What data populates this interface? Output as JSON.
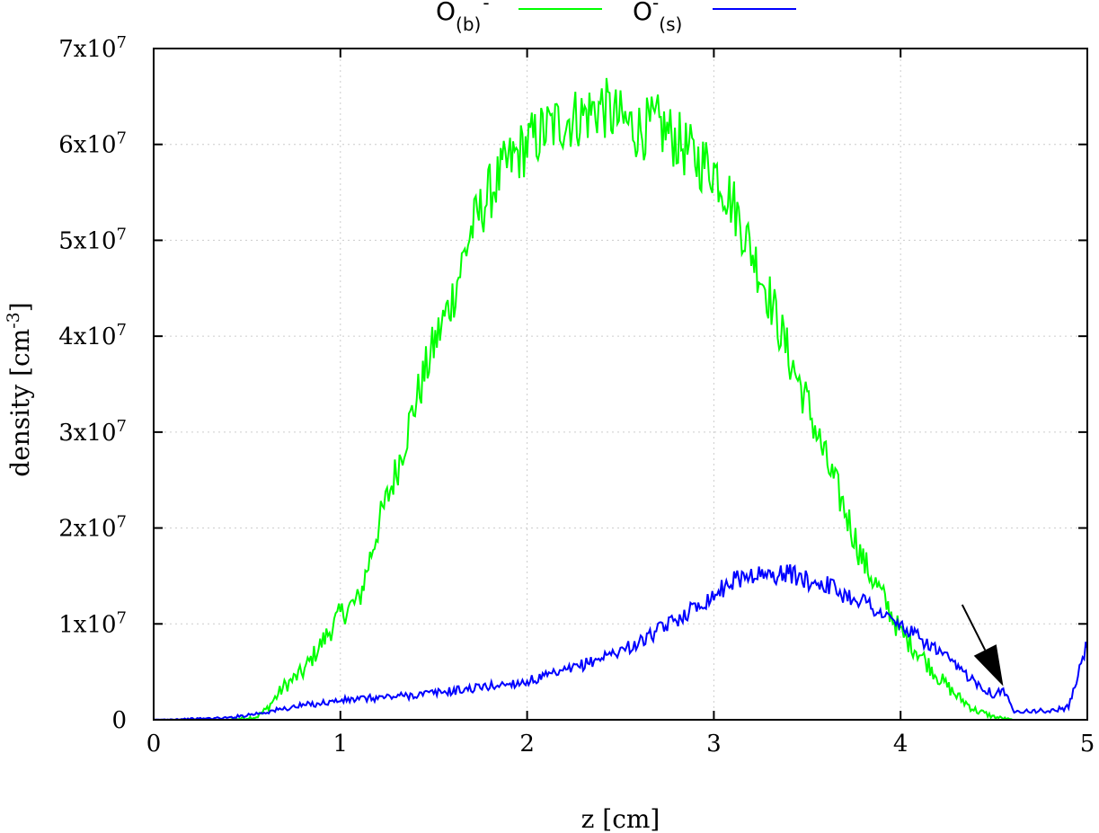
{
  "chart_data": {
    "type": "line",
    "title": "",
    "xlabel": "z [cm]",
    "ylabel": "density [cm",
    "ylabel_sup": "-3",
    "ylabel_end": "]",
    "xlim": [
      0,
      5
    ],
    "ylim": [
      0,
      70000000
    ],
    "grid": true,
    "legend_position": "top-center",
    "x_ticks": [
      0,
      1,
      2,
      3,
      4,
      5
    ],
    "x_tick_labels": [
      "0",
      "1",
      "2",
      "3",
      "4",
      "5"
    ],
    "y_ticks": [
      0,
      10000000,
      20000000,
      30000000,
      40000000,
      50000000,
      60000000,
      70000000
    ],
    "y_tick_labels": [
      {
        "base": "0",
        "exp": ""
      },
      {
        "base": "1x10",
        "exp": "7"
      },
      {
        "base": "2x10",
        "exp": "7"
      },
      {
        "base": "3x10",
        "exp": "7"
      },
      {
        "base": "4x10",
        "exp": "7"
      },
      {
        "base": "5x10",
        "exp": "7"
      },
      {
        "base": "6x10",
        "exp": "7"
      },
      {
        "base": "7x10",
        "exp": "7"
      }
    ],
    "series": [
      {
        "name_main": "O",
        "name_sub": "(b)",
        "name_sup": "-",
        "color": "#00ff00",
        "x": [
          0,
          0.2,
          0.4,
          0.55,
          0.6,
          0.7,
          0.8,
          0.9,
          1.0,
          1.1,
          1.2,
          1.3,
          1.4,
          1.5,
          1.6,
          1.7,
          1.8,
          1.9,
          2.0,
          2.1,
          2.2,
          2.3,
          2.4,
          2.5,
          2.6,
          2.7,
          2.8,
          2.9,
          3.0,
          3.1,
          3.2,
          3.3,
          3.4,
          3.5,
          3.6,
          3.7,
          3.8,
          3.9,
          4.0,
          4.1,
          4.2,
          4.3,
          4.4,
          4.5,
          4.6,
          4.8,
          5.0
        ],
        "y": [
          0,
          0,
          0,
          300000,
          1000000,
          3500000,
          5000000,
          8000000,
          11000000,
          12500000,
          20000000,
          26000000,
          33000000,
          39000000,
          44000000,
          51000000,
          55000000,
          58000000,
          60000000,
          61500000,
          62500000,
          63000000,
          64000000,
          62500000,
          61500000,
          62000000,
          60500000,
          58500000,
          57500000,
          54000000,
          49000000,
          44000000,
          38000000,
          33000000,
          27000000,
          22000000,
          16500000,
          13000000,
          9000000,
          7000000,
          4500000,
          2500000,
          1000000,
          300000,
          0,
          0,
          0
        ]
      },
      {
        "name_main": "O",
        "name_sub": "(s)",
        "name_sup": "-",
        "color": "#0000ff",
        "x": [
          0,
          0.4,
          0.6,
          0.8,
          1.0,
          1.2,
          1.4,
          1.6,
          1.8,
          2.0,
          2.2,
          2.4,
          2.6,
          2.8,
          3.0,
          3.1,
          3.2,
          3.3,
          3.4,
          3.5,
          3.6,
          3.7,
          3.8,
          3.9,
          4.0,
          4.1,
          4.2,
          4.3,
          4.4,
          4.5,
          4.55,
          4.6,
          4.8,
          4.9,
          5.0
        ],
        "y": [
          0,
          200000,
          800000,
          1500000,
          2000000,
          2300000,
          2600000,
          3000000,
          3500000,
          4000000,
          5000000,
          6500000,
          8000000,
          10500000,
          13000000,
          14500000,
          15200000,
          15000000,
          15300000,
          14500000,
          14200000,
          13000000,
          12500000,
          11000000,
          9800000,
          8500000,
          7200000,
          5500000,
          4000000,
          2600000,
          3200000,
          1000000,
          900000,
          1300000,
          8000000
        ]
      }
    ],
    "annotation": {
      "type": "arrow",
      "from": [
        4.33,
        12000000
      ],
      "to": [
        4.55,
        3500000
      ]
    }
  }
}
